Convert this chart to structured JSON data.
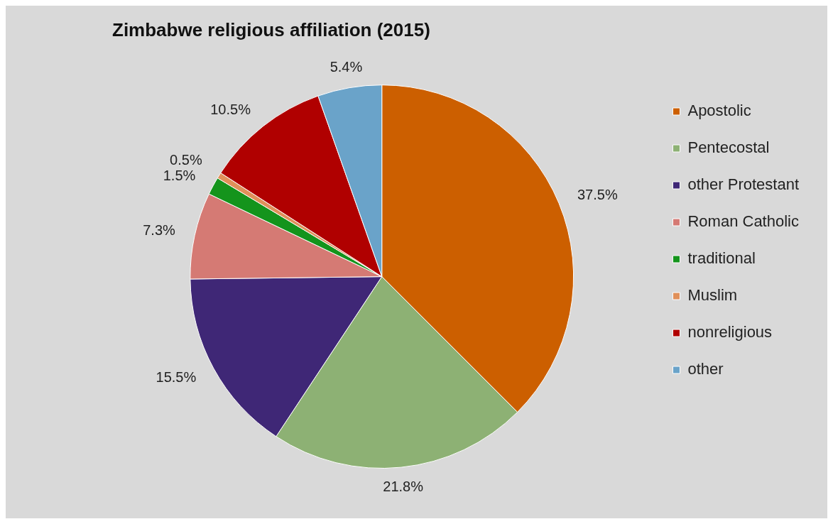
{
  "chart_data": {
    "type": "pie",
    "title": "Zimbabwe religious affiliation (2015)",
    "categories": [
      "Apostolic",
      "Pentecostal",
      "other Protestant",
      "Roman Catholic",
      "traditional",
      "Muslim",
      "nonreligious",
      "other"
    ],
    "values": [
      37.5,
      21.8,
      15.5,
      7.3,
      1.5,
      0.5,
      10.5,
      5.4
    ],
    "colors": [
      "#cc5f00",
      "#8db174",
      "#3f2776",
      "#d57a74",
      "#14941c",
      "#e0905a",
      "#b00000",
      "#6aa3c9"
    ],
    "value_labels": [
      "37.5%",
      "21.8%",
      "15.5%",
      "7.3%",
      "1.5%",
      "0.5%",
      "10.5%",
      "5.4%"
    ],
    "legend": "right"
  }
}
